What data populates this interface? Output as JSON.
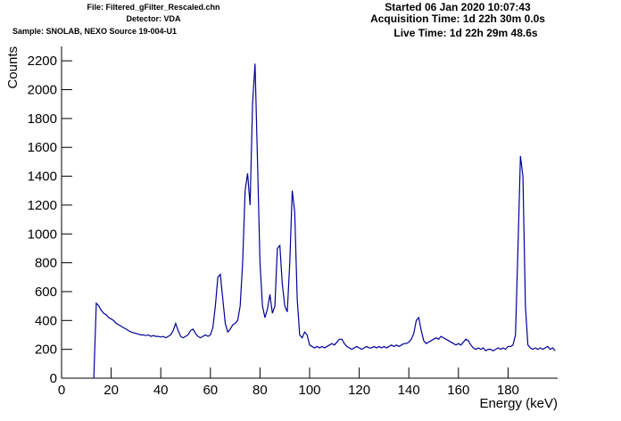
{
  "chart_data": {
    "type": "line",
    "header": [
      "File: Filtered_gFilter_Rescaled.chn",
      "Detector: VDA",
      "Sample: SNOLAB, NEXO Source 19-004-U1"
    ],
    "info": [
      "Started 06 Jan 2020 10:07:43",
      "Acquisition Time: 1d 22h 30m 0.0s",
      "Live Time: 1d 22h 29m 48.6s"
    ],
    "x_label": "Energy (keV)",
    "y_label": "Counts",
    "xlim": [
      0,
      200
    ],
    "ylim": [
      0,
      2300
    ],
    "xticks": [
      0,
      20,
      40,
      60,
      80,
      100,
      120,
      140,
      160,
      180
    ],
    "yticks": [
      0,
      200,
      400,
      600,
      800,
      1000,
      1200,
      1400,
      1600,
      1800,
      2000,
      2200
    ],
    "x": [
      13,
      14,
      15,
      16,
      17,
      18,
      19,
      20,
      21,
      22,
      23,
      24,
      25,
      26,
      27,
      28,
      29,
      30,
      31,
      32,
      33,
      34,
      35,
      36,
      37,
      38,
      39,
      40,
      41,
      42,
      43,
      44,
      45,
      46,
      47,
      48,
      49,
      50,
      51,
      52,
      53,
      54,
      55,
      56,
      57,
      58,
      59,
      60,
      61,
      62,
      63,
      64,
      65,
      66,
      67,
      68,
      69,
      70,
      71,
      72,
      73,
      74,
      75,
      76,
      77,
      78,
      79,
      80,
      81,
      82,
      83,
      84,
      85,
      86,
      87,
      88,
      89,
      90,
      91,
      92,
      93,
      94,
      95,
      96,
      97,
      98,
      99,
      100,
      101,
      102,
      103,
      104,
      105,
      106,
      107,
      108,
      109,
      110,
      111,
      112,
      113,
      114,
      115,
      116,
      117,
      118,
      119,
      120,
      121,
      122,
      123,
      124,
      125,
      126,
      127,
      128,
      129,
      130,
      131,
      132,
      133,
      134,
      135,
      136,
      137,
      138,
      139,
      140,
      141,
      142,
      143,
      144,
      145,
      146,
      147,
      148,
      149,
      150,
      151,
      152,
      153,
      154,
      155,
      156,
      157,
      158,
      159,
      160,
      161,
      162,
      163,
      164,
      165,
      166,
      167,
      168,
      169,
      170,
      171,
      172,
      173,
      174,
      175,
      176,
      177,
      178,
      179,
      180,
      181,
      182,
      183,
      184,
      185,
      186,
      187,
      188,
      189,
      190,
      191,
      192,
      193,
      194,
      195,
      196,
      197,
      198,
      199
    ],
    "series": [
      {
        "color": "#000099",
        "values": [
          0,
          520,
          500,
          470,
          450,
          440,
          420,
          410,
          400,
          380,
          370,
          360,
          350,
          340,
          330,
          320,
          315,
          310,
          305,
          300,
          300,
          295,
          300,
          290,
          295,
          290,
          290,
          285,
          290,
          280,
          290,
          300,
          330,
          380,
          330,
          290,
          280,
          290,
          300,
          330,
          340,
          310,
          290,
          280,
          290,
          300,
          290,
          300,
          350,
          500,
          700,
          720,
          550,
          380,
          320,
          340,
          370,
          380,
          400,
          500,
          800,
          1300,
          1420,
          1200,
          1900,
          2180,
          1500,
          800,
          500,
          420,
          480,
          580,
          450,
          500,
          900,
          920,
          650,
          500,
          460,
          800,
          1300,
          1150,
          550,
          300,
          280,
          320,
          300,
          230,
          220,
          210,
          220,
          210,
          220,
          210,
          220,
          230,
          240,
          230,
          250,
          270,
          270,
          240,
          220,
          210,
          200,
          210,
          220,
          210,
          200,
          210,
          220,
          210,
          210,
          220,
          210,
          220,
          210,
          220,
          210,
          220,
          230,
          220,
          230,
          220,
          230,
          240,
          240,
          250,
          270,
          310,
          400,
          420,
          330,
          260,
          240,
          250,
          260,
          270,
          280,
          270,
          290,
          280,
          270,
          260,
          250,
          240,
          230,
          240,
          230,
          250,
          270,
          260,
          230,
          210,
          200,
          210,
          200,
          210,
          190,
          200,
          200,
          190,
          200,
          210,
          200,
          210,
          200,
          220,
          220,
          230,
          300,
          900,
          1540,
          1400,
          500,
          230,
          210,
          200,
          210,
          200,
          210,
          200,
          210,
          220,
          200,
          210,
          190
        ]
      }
    ]
  }
}
